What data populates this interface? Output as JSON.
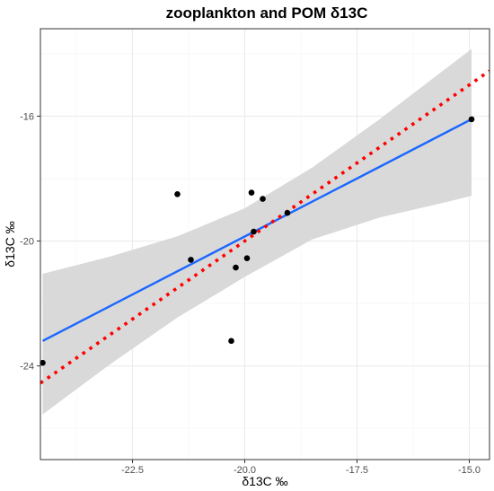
{
  "chart_data": {
    "type": "scatter",
    "title": "zooplankton and POM δ13C",
    "xlabel": "δ13C ‰",
    "ylabel": "δ13C ‰",
    "xlim": [
      -24.55,
      -14.55
    ],
    "ylim": [
      -27.0,
      -13.2
    ],
    "x_ticks": [
      -22.5,
      -20.0,
      -17.5,
      -15.0
    ],
    "x_tick_labels": [
      "-22.5",
      "-20.0",
      "-17.5",
      "-15.0"
    ],
    "y_ticks": [
      -24,
      -20,
      -16
    ],
    "y_tick_labels": [
      "-24",
      "-20",
      "-16"
    ],
    "grid": true,
    "points": [
      {
        "x": -24.5,
        "y": -23.9
      },
      {
        "x": -21.5,
        "y": -18.5
      },
      {
        "x": -21.2,
        "y": -20.6
      },
      {
        "x": -20.3,
        "y": -23.2
      },
      {
        "x": -20.2,
        "y": -20.85
      },
      {
        "x": -19.95,
        "y": -20.55
      },
      {
        "x": -19.85,
        "y": -18.45
      },
      {
        "x": -19.8,
        "y": -19.7
      },
      {
        "x": -19.6,
        "y": -18.65
      },
      {
        "x": -19.05,
        "y": -19.1
      },
      {
        "x": -14.95,
        "y": -16.1
      }
    ],
    "regression": {
      "color": "#1a66ff",
      "start": {
        "x": -24.5,
        "y": -23.2
      },
      "end": {
        "x": -14.95,
        "y": -16.1
      },
      "ci_band": [
        {
          "x": -24.5,
          "lower": -25.55,
          "upper": -21.05
        },
        {
          "x": -23.0,
          "lower": -23.95,
          "upper": -20.5
        },
        {
          "x": -21.5,
          "lower": -22.45,
          "upper": -19.85
        },
        {
          "x": -20.0,
          "lower": -21.15,
          "upper": -18.95
        },
        {
          "x": -18.5,
          "lower": -19.95,
          "upper": -17.65
        },
        {
          "x": -17.0,
          "lower": -19.25,
          "upper": -16.1
        },
        {
          "x": -15.5,
          "lower": -18.75,
          "upper": -14.45
        },
        {
          "x": -14.95,
          "lower": -18.55,
          "upper": -13.85
        }
      ],
      "ci_color": "#d9d9d9"
    },
    "reference_line": {
      "style": "dotted",
      "color": "#ff0000",
      "slope": 1,
      "intercept": 0
    }
  }
}
